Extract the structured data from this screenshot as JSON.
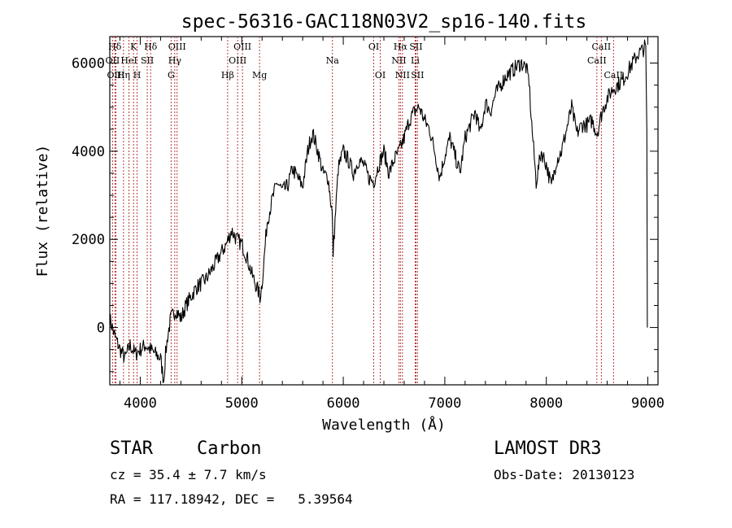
{
  "chart_data": {
    "type": "line",
    "title": "spec-56316-GAC118N03V2_sp16-140.fits",
    "xlabel": "Wavelength (Å)",
    "ylabel": "Flux (relative)",
    "xlim": [
      3700,
      9100
    ],
    "ylim": [
      -1300,
      6600
    ],
    "x_ticks": [
      4000,
      5000,
      6000,
      7000,
      8000,
      9000
    ],
    "y_ticks": [
      0,
      2000,
      4000,
      6000
    ],
    "x_tick_labels": [
      "4000",
      "5000",
      "6000",
      "7000",
      "8000",
      "9000"
    ],
    "y_tick_labels": [
      "0",
      "2000",
      "4000",
      "6000"
    ],
    "grid": false,
    "line_color": "#000000",
    "marker_color": "#b22222",
    "series": [
      {
        "name": "flux",
        "x": [
          3700,
          3750,
          3800,
          3850,
          3900,
          3950,
          4000,
          4050,
          4100,
          4150,
          4200,
          4230,
          4250,
          4270,
          4300,
          4350,
          4400,
          4450,
          4500,
          4550,
          4600,
          4650,
          4700,
          4750,
          4800,
          4850,
          4900,
          4950,
          5000,
          5050,
          5100,
          5150,
          5180,
          5200,
          5250,
          5300,
          5350,
          5400,
          5450,
          5500,
          5550,
          5600,
          5650,
          5680,
          5700,
          5750,
          5800,
          5850,
          5890,
          5900,
          5950,
          6000,
          6050,
          6100,
          6150,
          6200,
          6250,
          6300,
          6350,
          6400,
          6450,
          6500,
          6550,
          6600,
          6650,
          6700,
          6750,
          6800,
          6850,
          6900,
          6950,
          7000,
          7050,
          7100,
          7150,
          7200,
          7250,
          7300,
          7350,
          7400,
          7450,
          7500,
          7550,
          7600,
          7650,
          7700,
          7750,
          7800,
          7830,
          7850,
          7900,
          7950,
          8000,
          8050,
          8100,
          8150,
          8200,
          8250,
          8300,
          8350,
          8400,
          8450,
          8500,
          8550,
          8600,
          8650,
          8700,
          8750,
          8800,
          8850,
          8900,
          8950,
          8980,
          8990,
          8995
        ],
        "y": [
          200,
          -200,
          -500,
          -700,
          -400,
          -600,
          -500,
          -400,
          -500,
          -600,
          -700,
          -1200,
          -600,
          -200,
          200,
          400,
          200,
          500,
          700,
          900,
          1000,
          1100,
          1300,
          1500,
          1700,
          1900,
          2200,
          2000,
          1900,
          1600,
          1200,
          900,
          700,
          1000,
          2400,
          2900,
          3300,
          3100,
          3200,
          3600,
          3400,
          3200,
          4000,
          4300,
          4400,
          4000,
          3500,
          3400,
          2600,
          1700,
          3600,
          4000,
          3800,
          3500,
          3800,
          3700,
          3400,
          3300,
          3700,
          4000,
          3500,
          3800,
          4000,
          4300,
          4700,
          4900,
          5000,
          4700,
          4500,
          4000,
          3400,
          3900,
          4300,
          3900,
          3500,
          4300,
          4600,
          4900,
          4400,
          5100,
          4900,
          5300,
          5500,
          5700,
          5800,
          5900,
          6000,
          5900,
          5600,
          4800,
          3300,
          4000,
          3700,
          3200,
          3800,
          4000,
          4500,
          5000,
          4400,
          4600,
          4600,
          4700,
          4400,
          4900,
          5200,
          5400,
          5500,
          5600,
          5800,
          6000,
          6200,
          6300,
          6400,
          4500,
          0
        ]
      }
    ],
    "line_markers": [
      {
        "label": "Hδ",
        "x": 3750,
        "row": 0
      },
      {
        "label": "OII",
        "x": 3727,
        "row": 1
      },
      {
        "label": "OIII",
        "x": 3760,
        "row": 2
      },
      {
        "label": "Hη",
        "x": 3835,
        "row": 2
      },
      {
        "label": "K",
        "x": 3934,
        "row": 0
      },
      {
        "label": "HeI",
        "x": 3889,
        "row": 1
      },
      {
        "label": "SII",
        "x": 4069,
        "row": 1
      },
      {
        "label": "H",
        "x": 3969,
        "row": 2
      },
      {
        "label": "Hδ",
        "x": 4102,
        "row": 0
      },
      {
        "label": "OIII",
        "x": 4363,
        "row": 0
      },
      {
        "label": "Hγ",
        "x": 4340,
        "row": 1
      },
      {
        "label": "G",
        "x": 4304,
        "row": 2
      },
      {
        "label": "OIII",
        "x": 5007,
        "row": 0
      },
      {
        "label": "OIII",
        "x": 4959,
        "row": 1
      },
      {
        "label": "Hβ",
        "x": 4861,
        "row": 2
      },
      {
        "label": "Mg",
        "x": 5175,
        "row": 2
      },
      {
        "label": "Na",
        "x": 5893,
        "row": 1
      },
      {
        "label": "OI",
        "x": 6300,
        "row": 0
      },
      {
        "label": "OI",
        "x": 6364,
        "row": 2
      },
      {
        "label": "Hα",
        "x": 6563,
        "row": 0
      },
      {
        "label": "SII",
        "x": 6716,
        "row": 0
      },
      {
        "label": "NII",
        "x": 6548,
        "row": 1
      },
      {
        "label": "Li",
        "x": 6708,
        "row": 1
      },
      {
        "label": "NII",
        "x": 6583,
        "row": 2
      },
      {
        "label": "SII",
        "x": 6731,
        "row": 2
      },
      {
        "label": "CaII",
        "x": 8542,
        "row": 0
      },
      {
        "label": "CaII",
        "x": 8498,
        "row": 1
      },
      {
        "label": "CaII",
        "x": 8662,
        "row": 2
      }
    ]
  },
  "info": {
    "object_type": "STAR",
    "subclass": "Carbon",
    "survey": "LAMOST DR3",
    "cz": "cz = 35.4 ± 7.7 km/s",
    "obs_date": "Obs-Date: 20130123",
    "radec": "RA = 117.18942, DEC =   5.39564"
  }
}
